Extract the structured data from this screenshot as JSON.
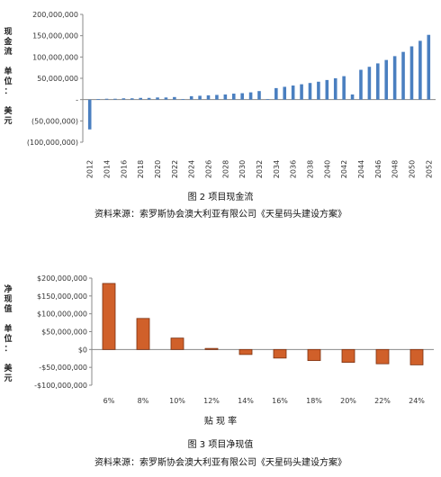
{
  "chart_data": [
    {
      "type": "bar",
      "title": "",
      "caption": "图 2  项目现金流",
      "source": "资料来源：索罗斯协会澳大利亚有限公司《天星码头建设方案》",
      "ylabel": "现金流  单位：美元",
      "ylabel_lines": [
        "现",
        "金",
        "流",
        "",
        "单",
        "位",
        "：",
        "",
        "美",
        "元"
      ],
      "xlabel": "",
      "ylim": [
        -100000000,
        200000000
      ],
      "y_ticks": [
        -100000000,
        -50000000,
        0,
        50000000,
        100000000,
        150000000,
        200000000
      ],
      "y_tick_labels": [
        "(100,000,000)",
        "(50,000,000)",
        "-",
        "50,000,000",
        "100,000,000",
        "150,000,000",
        "200,000,000"
      ],
      "categories": [
        "2012",
        "2013",
        "2014",
        "2015",
        "2016",
        "2017",
        "2018",
        "2019",
        "2020",
        "2021",
        "2022",
        "2023",
        "2024",
        "2025",
        "2026",
        "2027",
        "2028",
        "2029",
        "2030",
        "2031",
        "2032",
        "2033",
        "2034",
        "2035",
        "2036",
        "2037",
        "2038",
        "2039",
        "2040",
        "2041",
        "2042",
        "2043",
        "2044",
        "2045",
        "2046",
        "2047",
        "2048",
        "2049",
        "2050",
        "2051",
        "2052"
      ],
      "x_tick_labels": [
        "2012",
        "2014",
        "2016",
        "2018",
        "2020",
        "2022",
        "2024",
        "2026",
        "2028",
        "2030",
        "2032",
        "2034",
        "2036",
        "2038",
        "2040",
        "2042",
        "2044",
        "2046",
        "2048",
        "2050",
        "2052"
      ],
      "values": [
        -70000000,
        1000000,
        2000000,
        2000000,
        3000000,
        3000000,
        4000000,
        4000000,
        5000000,
        5000000,
        6000000,
        1000000,
        8000000,
        9000000,
        10000000,
        11000000,
        12000000,
        14000000,
        15000000,
        17000000,
        20000000,
        1000000,
        27000000,
        30000000,
        33000000,
        36000000,
        39000000,
        42000000,
        46000000,
        50000000,
        55000000,
        12000000,
        70000000,
        77000000,
        85000000,
        93000000,
        102000000,
        112000000,
        125000000,
        138000000,
        152000000
      ],
      "color": "#4a7fc0",
      "grid": false
    },
    {
      "type": "bar",
      "title": "",
      "caption": "图 3  项目净现值",
      "source": "资料来源：索罗斯协会澳大利亚有限公司《天星码头建设方案》",
      "ylabel": "净现值  单位：美元",
      "ylabel_lines": [
        "净",
        "现",
        "值",
        "",
        "单",
        "位",
        "：",
        "",
        "美",
        "元"
      ],
      "xlabel": "贴 现 率",
      "ylim": [
        -100000000,
        200000000
      ],
      "y_ticks": [
        -100000000,
        -50000000,
        0,
        50000000,
        100000000,
        150000000,
        200000000
      ],
      "y_tick_labels": [
        "-$100,000,000",
        "-$50,000,000",
        "$0",
        "$50,000,000",
        "$100,000,000",
        "$150,000,000",
        "$200,000,000"
      ],
      "categories": [
        "6%",
        "8%",
        "10%",
        "12%",
        "14%",
        "16%",
        "18%",
        "20%",
        "22%",
        "24%"
      ],
      "values": [
        185000000,
        87000000,
        32000000,
        3000000,
        -14000000,
        -24000000,
        -31000000,
        -36000000,
        -40000000,
        -43000000
      ],
      "color": "#d0602a",
      "stroke": "#7a3010",
      "grid": false
    }
  ]
}
